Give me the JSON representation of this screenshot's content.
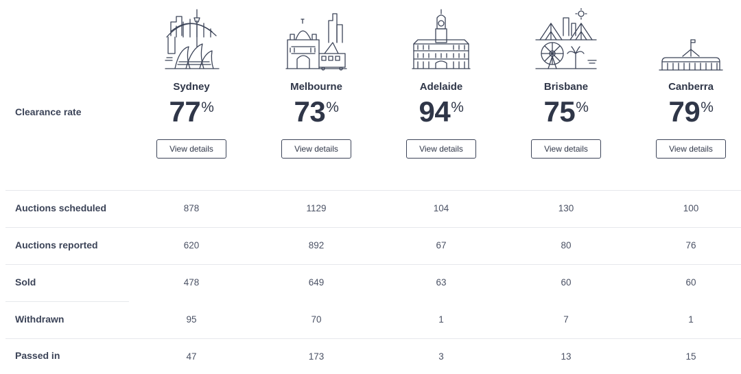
{
  "row_labels": {
    "clearance_rate": "Clearance rate",
    "auctions_scheduled": "Auctions scheduled",
    "auctions_reported": "Auctions reported",
    "sold": "Sold",
    "withdrawn": "Withdrawn",
    "passed_in": "Passed in"
  },
  "percent_sign": "%",
  "cities": [
    {
      "name": "Sydney",
      "icon": "sydney-skyline-icon",
      "clearance_rate": "77",
      "button": "View details",
      "auctions_scheduled": "878",
      "auctions_reported": "620",
      "sold": "478",
      "withdrawn": "95",
      "passed_in": "47"
    },
    {
      "name": "Melbourne",
      "icon": "melbourne-skyline-icon",
      "clearance_rate": "73",
      "button": "View details",
      "auctions_scheduled": "1129",
      "auctions_reported": "892",
      "sold": "649",
      "withdrawn": "70",
      "passed_in": "173"
    },
    {
      "name": "Adelaide",
      "icon": "adelaide-town-hall-icon",
      "clearance_rate": "94",
      "button": "View details",
      "auctions_scheduled": "104",
      "auctions_reported": "67",
      "sold": "63",
      "withdrawn": "1",
      "passed_in": "3"
    },
    {
      "name": "Brisbane",
      "icon": "brisbane-skyline-icon",
      "clearance_rate": "75",
      "button": "View details",
      "auctions_scheduled": "130",
      "auctions_reported": "80",
      "sold": "60",
      "withdrawn": "7",
      "passed_in": "13"
    },
    {
      "name": "Canberra",
      "icon": "canberra-parliament-icon",
      "clearance_rate": "79",
      "button": "View details",
      "auctions_scheduled": "100",
      "auctions_reported": "76",
      "sold": "60",
      "withdrawn": "1",
      "passed_in": "15"
    }
  ]
}
